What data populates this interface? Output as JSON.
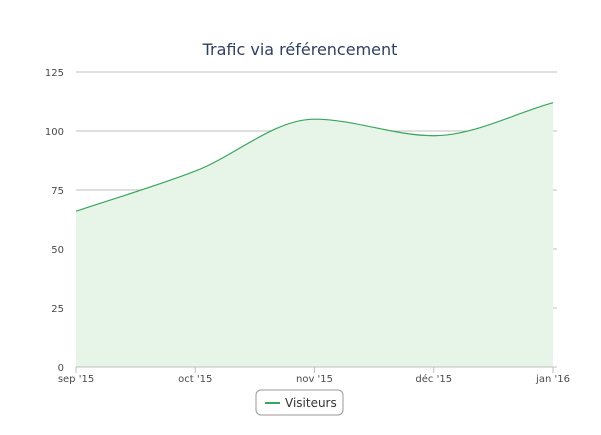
{
  "chart_data": {
    "type": "area",
    "title": "Trafic via référencement",
    "xlabel": "",
    "ylabel": "",
    "x": [
      "sep '15",
      "oct '15",
      "nov '15",
      "déc '15",
      "jan '16"
    ],
    "series": [
      {
        "name": "Visiteurs",
        "values": [
          66,
          83,
          105,
          98,
          112
        ]
      }
    ],
    "ylim": [
      0,
      125
    ],
    "yticks": [
      0,
      25,
      50,
      75,
      100,
      125
    ],
    "grid": true,
    "legend": "bottom-center",
    "colors": {
      "line": "#3aa55d",
      "fill": "#e6f5e8",
      "grid": "#bfbfbf",
      "title": "#2f3f5e"
    }
  }
}
